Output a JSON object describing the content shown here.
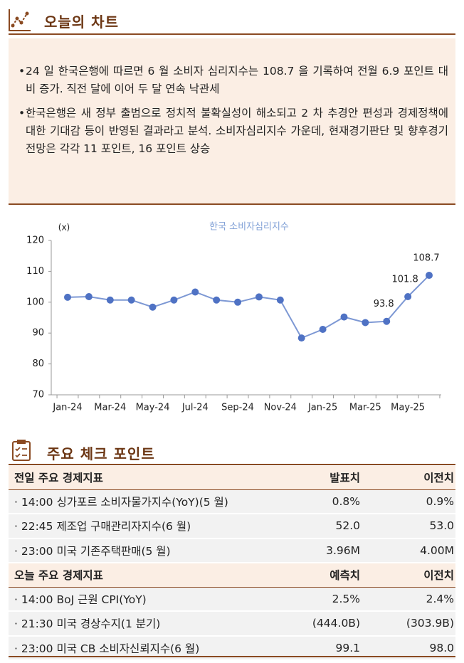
{
  "header": {
    "title": "오늘의 차트"
  },
  "summary": {
    "bullets": [
      "24 일 한국은행에 따르면 6 월 소비자 심리지수는 108.7 을 기록하여 전월 6.9 포인트 대비 증가. 직전 달에 이어 두 달 연속 낙관세",
      "한국은행은 새 정부 출범으로 정치적 불확실성이 해소되고 2 차 추경안 편성과 경제정책에 대한 기대감 등이 반영된 결과라고 분석. 소비자심리지수 가운데, 현재경기판단 및 향후경기전망은 각각 11 포인트, 16 포인트 상승"
    ]
  },
  "chart_data": {
    "type": "line",
    "title": "한국 소비자심리지수",
    "y_label": "(x)",
    "categories": [
      "Jan-24",
      null,
      "Mar-24",
      null,
      "May-24",
      null,
      "Jul-24",
      null,
      "Sep-24",
      null,
      "Nov-24",
      null,
      "Jan-25",
      null,
      "Mar-25",
      null,
      "May-25",
      null
    ],
    "values": [
      101.6,
      101.8,
      100.7,
      100.7,
      98.4,
      100.7,
      103.3,
      100.7,
      100.0,
      101.7,
      100.7,
      88.4,
      91.2,
      95.2,
      93.4,
      93.8,
      101.8,
      108.7
    ],
    "value_labels": [
      null,
      null,
      null,
      null,
      null,
      null,
      null,
      null,
      null,
      null,
      null,
      null,
      null,
      null,
      null,
      "93.8",
      "101.8",
      "108.7"
    ],
    "color": "#4f72c4",
    "line_color": "#7d98d4",
    "ylim": [
      70,
      120
    ],
    "yticks": [
      70,
      80,
      90,
      100,
      110,
      120
    ],
    "grid": false
  },
  "checkpoints": {
    "title": "주요 체크 포인트",
    "tables": [
      {
        "header": [
          "전일 주요 경제지표",
          "발표치",
          "이전치"
        ],
        "rows": [
          [
            "· 14:00 싱가포르 소비자물가지수(YoY)(5 월)",
            "0.8%",
            "0.9%"
          ],
          [
            "· 22:45 제조업 구매관리자지수(6 월)",
            "52.0",
            "53.0"
          ],
          [
            "· 23:00 미국 기존주택판매(5 월)",
            "3.96M",
            "4.00M"
          ]
        ]
      },
      {
        "header": [
          "오늘 주요 경제지표",
          "예측치",
          "이전치"
        ],
        "rows": [
          [
            "· 14:00 BoJ 근원 CPI(YoY)",
            "2.5%",
            "2.4%"
          ],
          [
            "· 21:30 미국 경상수지(1 분기)",
            "(444.0B)",
            "(303.9B)"
          ],
          [
            "· 23:00 미국 CB 소비자신뢰지수(6 월)",
            "99.1",
            "98.0"
          ]
        ]
      }
    ]
  }
}
